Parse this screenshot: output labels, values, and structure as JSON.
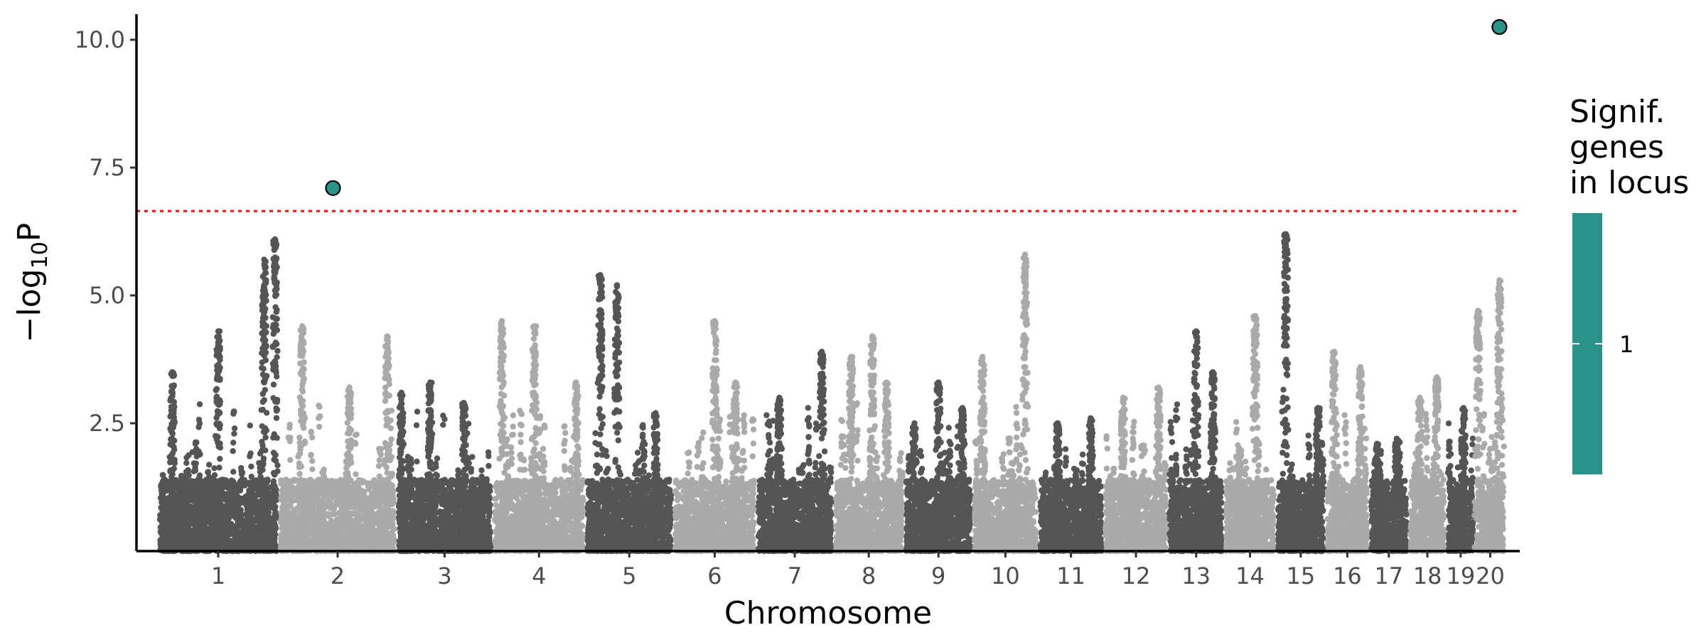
{
  "chart_data": {
    "type": "scatter",
    "subtype": "manhattan",
    "title": "",
    "xlabel": "Chromosome",
    "ylabel": "−log10P",
    "ylabel_parts": {
      "prefix": "−log",
      "subscript": "10",
      "suffix": "P"
    },
    "ylim": [
      0,
      10.5
    ],
    "y_ticks": [
      {
        "value": 2.5,
        "label": "2.5"
      },
      {
        "value": 5.0,
        "label": "5.0"
      },
      {
        "value": 7.5,
        "label": "7.5"
      },
      {
        "value": 10.0,
        "label": "10.0"
      }
    ],
    "significance_threshold": 6.65,
    "threshold_style": "dotted",
    "grid": false,
    "colors": {
      "odd_chromosome": "#555555",
      "even_chromosome": "#aaaaaa",
      "significant": "#2a9289",
      "threshold_line": "#e41a1c",
      "axis": "#000000"
    },
    "chromosomes": [
      {
        "label": "1",
        "length": 249,
        "peak_max": 6.1,
        "peak_positions": [
          0.12,
          0.5,
          0.88,
          0.97
        ],
        "peak_heights": [
          3.5,
          4.3,
          5.7,
          6.1
        ]
      },
      {
        "label": "2",
        "length": 243,
        "peak_max": 4.4,
        "peak_positions": [
          0.2,
          0.6,
          0.92
        ],
        "peak_heights": [
          4.4,
          3.2,
          4.2
        ]
      },
      {
        "label": "3",
        "length": 198,
        "peak_max": 3.3,
        "peak_positions": [
          0.05,
          0.35,
          0.7
        ],
        "peak_heights": [
          3.1,
          3.3,
          2.9
        ]
      },
      {
        "label": "4",
        "length": 191,
        "peak_max": 4.5,
        "peak_positions": [
          0.1,
          0.45,
          0.9
        ],
        "peak_heights": [
          4.5,
          4.4,
          3.3
        ]
      },
      {
        "label": "5",
        "length": 181,
        "peak_max": 5.4,
        "peak_positions": [
          0.17,
          0.36,
          0.8
        ],
        "peak_heights": [
          5.4,
          5.2,
          2.7
        ]
      },
      {
        "label": "6",
        "length": 171,
        "peak_max": 4.5,
        "peak_positions": [
          0.5,
          0.75
        ],
        "peak_heights": [
          4.5,
          3.3
        ]
      },
      {
        "label": "7",
        "length": 159,
        "peak_max": 3.9,
        "peak_positions": [
          0.3,
          0.85
        ],
        "peak_heights": [
          3.0,
          3.9
        ]
      },
      {
        "label": "8",
        "length": 146,
        "peak_max": 4.2,
        "peak_positions": [
          0.25,
          0.55,
          0.75
        ],
        "peak_heights": [
          3.8,
          4.2,
          3.3
        ]
      },
      {
        "label": "9",
        "length": 141,
        "peak_max": 3.3,
        "peak_positions": [
          0.15,
          0.5,
          0.85
        ],
        "peak_heights": [
          2.5,
          3.3,
          2.8
        ]
      },
      {
        "label": "10",
        "length": 135,
        "peak_max": 5.8,
        "peak_positions": [
          0.15,
          0.8
        ],
        "peak_heights": [
          3.8,
          5.8
        ]
      },
      {
        "label": "11",
        "length": 135,
        "peak_max": 2.6,
        "peak_positions": [
          0.3,
          0.8
        ],
        "peak_heights": [
          2.5,
          2.6
        ]
      },
      {
        "label": "12",
        "length": 133,
        "peak_max": 3.2,
        "peak_positions": [
          0.3,
          0.85
        ],
        "peak_heights": [
          3.0,
          3.2
        ]
      },
      {
        "label": "13",
        "length": 115,
        "peak_max": 4.3,
        "peak_positions": [
          0.5,
          0.8
        ],
        "peak_heights": [
          4.3,
          3.5
        ]
      },
      {
        "label": "14",
        "length": 107,
        "peak_max": 4.6,
        "peak_positions": [
          0.3,
          0.6
        ],
        "peak_heights": [
          2.0,
          4.6
        ]
      },
      {
        "label": "15",
        "length": 102,
        "peak_max": 6.2,
        "peak_positions": [
          0.2,
          0.85
        ],
        "peak_heights": [
          6.2,
          2.8
        ]
      },
      {
        "label": "16",
        "length": 90,
        "peak_max": 3.9,
        "peak_positions": [
          0.2,
          0.8
        ],
        "peak_heights": [
          3.9,
          3.6
        ]
      },
      {
        "label": "17",
        "length": 81,
        "peak_max": 2.2,
        "peak_positions": [
          0.2,
          0.7
        ],
        "peak_heights": [
          2.1,
          2.2
        ]
      },
      {
        "label": "18",
        "length": 78,
        "peak_max": 3.4,
        "peak_positions": [
          0.3,
          0.75
        ],
        "peak_heights": [
          3.0,
          3.4
        ]
      },
      {
        "label": "19",
        "length": 59,
        "peak_max": 2.8,
        "peak_positions": [
          0.6
        ],
        "peak_heights": [
          2.8
        ]
      },
      {
        "label": "20",
        "length": 63,
        "peak_max": 5.3,
        "peak_positions": [
          0.1,
          0.8
        ],
        "peak_heights": [
          4.7,
          5.3
        ]
      }
    ],
    "significant_points": [
      {
        "chromosome": "1",
        "relative_position": 1.45,
        "y": 7.1
      },
      {
        "chromosome": "20",
        "relative_position": 0.8,
        "y": 10.25
      }
    ],
    "legend": {
      "title_lines": [
        "Signif.",
        "genes",
        "in locus"
      ],
      "colorbar_color": "#2a9289",
      "tick_label": "1",
      "placement": "right"
    }
  }
}
